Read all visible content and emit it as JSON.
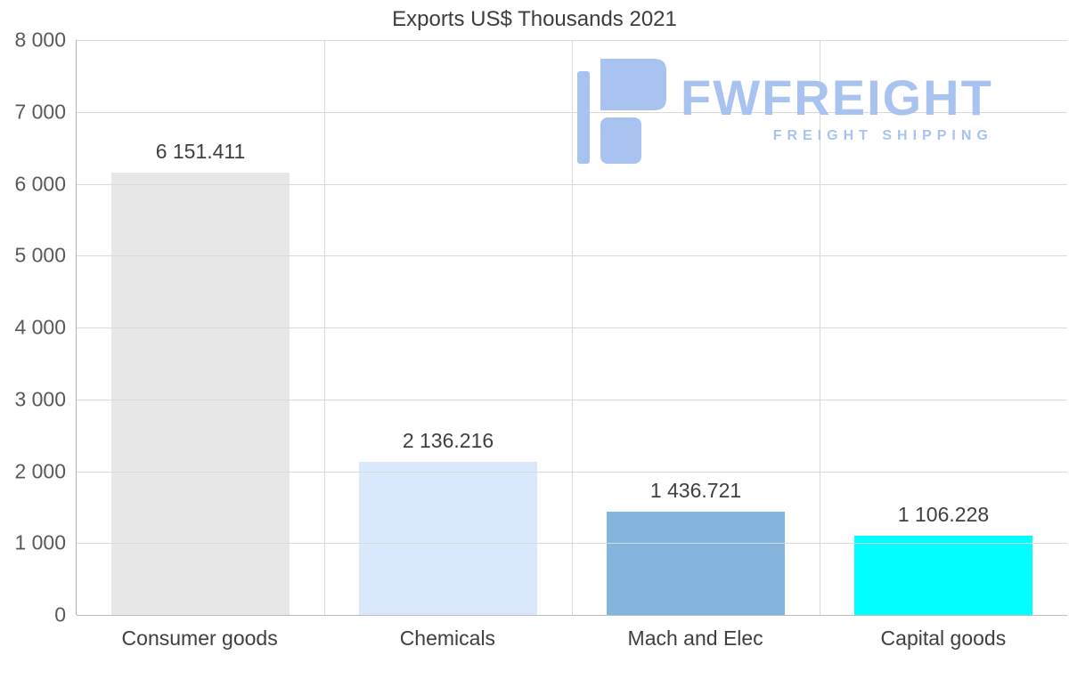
{
  "chart_data": {
    "type": "bar",
    "title": "Exports US$ Thousands 2021",
    "categories": [
      "Consumer goods",
      "Chemicals",
      "Mach and Elec",
      "Capital goods"
    ],
    "values": [
      6151.411,
      2136.216,
      1436.721,
      1106.228
    ],
    "value_labels": [
      "6 151.411",
      "2 136.216",
      "1 436.721",
      "1 106.228"
    ],
    "bar_colors": [
      "#e7e7e7",
      "#d9e8fb",
      "#84b5de",
      "#00ffff"
    ],
    "xlabel": "",
    "ylabel": "",
    "ylim": [
      0,
      8000
    ],
    "ytick_labels": [
      "8 000",
      "7 000",
      "6 000",
      "5 000",
      "4 000",
      "3 000",
      "2 000",
      "1 000",
      "0"
    ],
    "grid": "on",
    "legend": "none"
  },
  "logo": {
    "name": "FWFREIGHT",
    "tagline": "FREIGHT SHIPPING",
    "color": "#a9c3f1"
  }
}
